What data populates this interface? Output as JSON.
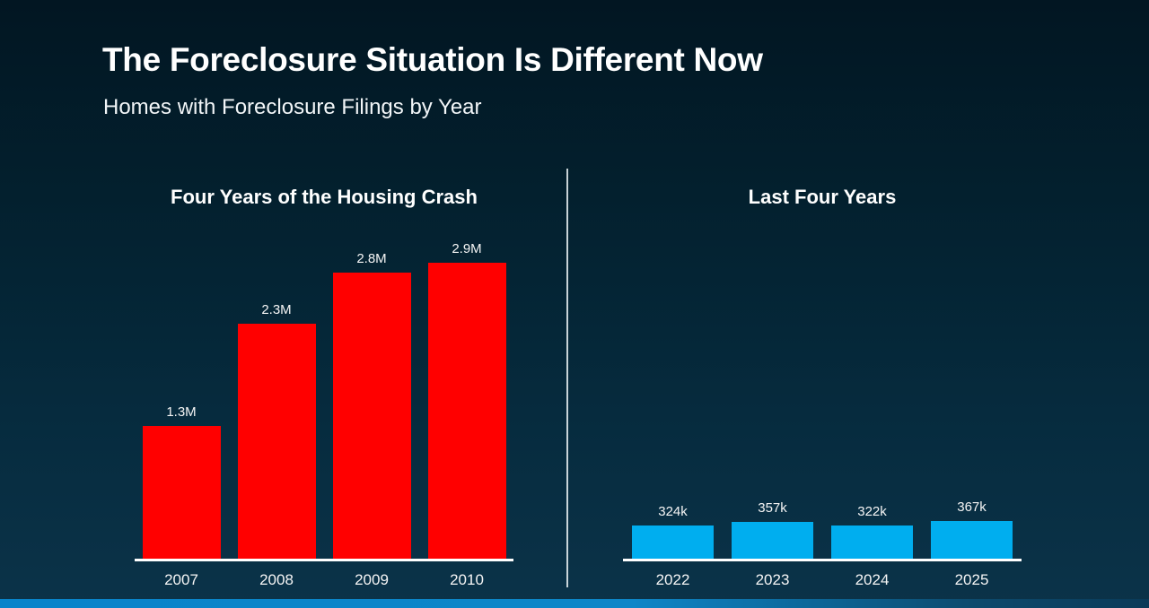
{
  "slide": {
    "title": "The Foreclosure Situation Is Different Now",
    "subtitle": "Homes with Foreclosure Filings by Year"
  },
  "chart_data": [
    {
      "type": "bar",
      "title": "Four Years of the Housing Crash",
      "categories": [
        "2007",
        "2008",
        "2009",
        "2010"
      ],
      "values": [
        1300000,
        2300000,
        2800000,
        2900000
      ],
      "value_labels": [
        "1.3M",
        "2.3M",
        "2.8M",
        "2.9M"
      ],
      "bar_color": "#ff0000",
      "ylim": [
        0,
        2900000
      ],
      "grid": false,
      "legend": "none",
      "xlabel": "",
      "ylabel": ""
    },
    {
      "type": "bar",
      "title": "Last Four Years",
      "categories": [
        "2022",
        "2023",
        "2024",
        "2025"
      ],
      "values": [
        324000,
        357000,
        322000,
        367000
      ],
      "value_labels": [
        "324k",
        "357k",
        "322k",
        "367k"
      ],
      "bar_color": "#00aeef",
      "ylim": [
        0,
        2900000
      ],
      "grid": false,
      "legend": "none",
      "xlabel": "",
      "ylabel": ""
    }
  ],
  "colors": {
    "background_top": "#021622",
    "background_bottom": "#0b3349",
    "crash_bar": "#ff0000",
    "recent_bar": "#00aeef",
    "axis_line": "#ffffff",
    "divider": "#ebf2f5",
    "footer_stripe_left": "#0884ca",
    "footer_stripe_right": "#0a3a58",
    "text": "#ffffff"
  }
}
